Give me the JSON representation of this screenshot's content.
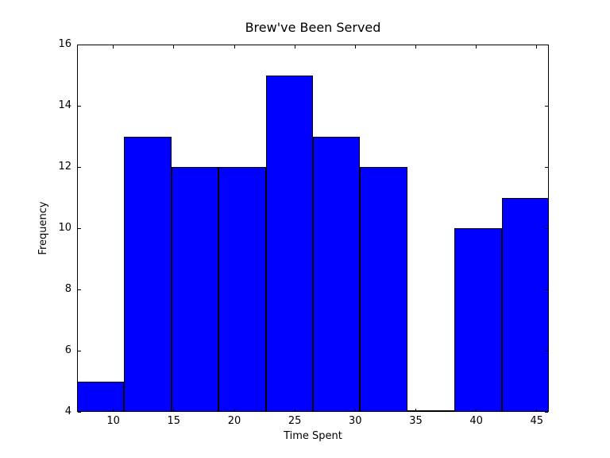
{
  "figure": {
    "background_color": "#ffffff",
    "axis_color": "#000000"
  },
  "chart_data": {
    "type": "bar",
    "subtype": "histogram",
    "title": "Brew've Been Served",
    "xlabel": "Time Spent",
    "ylabel": "Frequency",
    "bin_edges": [
      7.0,
      10.9,
      14.8,
      18.7,
      22.6,
      26.5,
      30.4,
      34.3,
      38.2,
      42.1,
      46.0
    ],
    "frequencies": [
      5,
      13,
      12,
      12,
      15,
      13,
      12,
      4,
      10,
      11
    ],
    "xlim": [
      7,
      46
    ],
    "ylim": [
      4,
      16
    ],
    "xticks": [
      10,
      15,
      20,
      25,
      30,
      35,
      40,
      45
    ],
    "yticks": [
      4,
      6,
      8,
      10,
      12,
      14,
      16
    ],
    "bar_color": "#0000ff",
    "bar_edge_color": "#000000",
    "grid": false,
    "legend_position": "none"
  }
}
